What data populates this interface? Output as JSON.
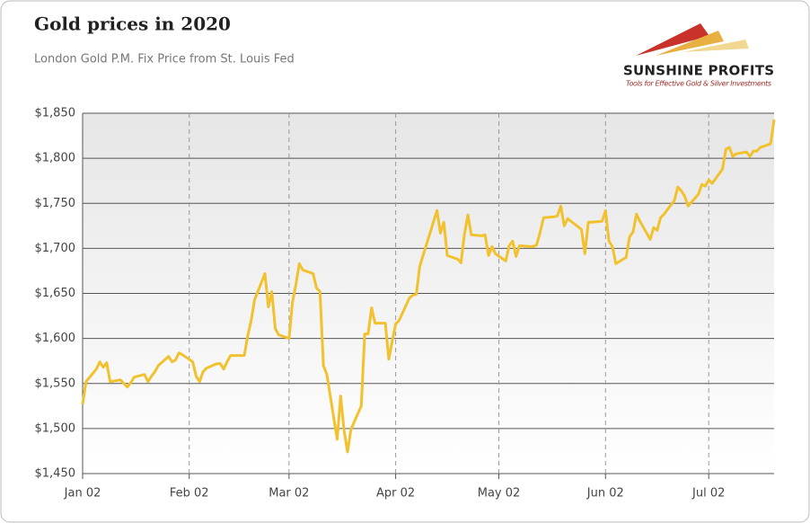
{
  "chart_data": {
    "type": "line",
    "title": "Gold prices in 2020",
    "subtitle": "London Gold P.M. Fix Price from St. Louis Fed",
    "logo": {
      "name": "SUNSHINE PROFITS",
      "tagline": "Tools for Effective Gold & Silver Investments"
    },
    "x": [
      "Jan 02",
      "Jan 03",
      "Jan 06",
      "Jan 07",
      "Jan 08",
      "Jan 09",
      "Jan 10",
      "Jan 13",
      "Jan 14",
      "Jan 15",
      "Jan 16",
      "Jan 17",
      "Jan 20",
      "Jan 21",
      "Jan 22",
      "Jan 23",
      "Jan 24",
      "Jan 27",
      "Jan 28",
      "Jan 29",
      "Jan 30",
      "Jan 31",
      "Feb 03",
      "Feb 04",
      "Feb 05",
      "Feb 06",
      "Feb 07",
      "Feb 10",
      "Feb 11",
      "Feb 12",
      "Feb 13",
      "Feb 14",
      "Feb 17",
      "Feb 18",
      "Feb 19",
      "Feb 20",
      "Feb 21",
      "Feb 24",
      "Feb 25",
      "Feb 26",
      "Feb 27",
      "Feb 28",
      "Mar 02",
      "Mar 03",
      "Mar 04",
      "Mar 05",
      "Mar 06",
      "Mar 09",
      "Mar 10",
      "Mar 11",
      "Mar 12",
      "Mar 13",
      "Mar 16",
      "Mar 17",
      "Mar 18",
      "Mar 19",
      "Mar 20",
      "Mar 23",
      "Mar 24",
      "Mar 25",
      "Mar 26",
      "Mar 27",
      "Mar 30",
      "Mar 31",
      "Apr 01",
      "Apr 02",
      "Apr 03",
      "Apr 06",
      "Apr 07",
      "Apr 08",
      "Apr 09",
      "Apr 14",
      "Apr 15",
      "Apr 16",
      "Apr 17",
      "Apr 20",
      "Apr 21",
      "Apr 22",
      "Apr 23",
      "Apr 24",
      "Apr 27",
      "Apr 28",
      "Apr 29",
      "Apr 30",
      "May 01",
      "May 04",
      "May 05",
      "May 06",
      "May 07",
      "May 08",
      "May 11",
      "May 12",
      "May 13",
      "May 14",
      "May 15",
      "May 18",
      "May 19",
      "May 20",
      "May 21",
      "May 22",
      "May 26",
      "May 27",
      "May 28",
      "May 29",
      "Jun 01",
      "Jun 02",
      "Jun 03",
      "Jun 04",
      "Jun 05",
      "Jun 08",
      "Jun 09",
      "Jun 10",
      "Jun 11",
      "Jun 12",
      "Jun 15",
      "Jun 16",
      "Jun 17",
      "Jun 18",
      "Jun 19",
      "Jun 22",
      "Jun 23",
      "Jun 24",
      "Jun 25",
      "Jun 26",
      "Jun 29",
      "Jun 30",
      "Jul 01",
      "Jul 02",
      "Jul 03",
      "Jul 06",
      "Jul 07",
      "Jul 08",
      "Jul 09",
      "Jul 10",
      "Jul 13",
      "Jul 14",
      "Jul 15",
      "Jul 16",
      "Jul 17",
      "Jul 20",
      "Jul 21"
    ],
    "series": [
      {
        "name": "Gold price",
        "color": "#f2c12e",
        "values": [
          1527,
          1552,
          1566,
          1574,
          1568,
          1573,
          1552,
          1554,
          1550,
          1546,
          1551,
          1557,
          1560,
          1552,
          1558,
          1563,
          1570,
          1580,
          1574,
          1576,
          1584,
          1582,
          1574,
          1558,
          1552,
          1563,
          1567,
          1572,
          1572,
          1566,
          1574,
          1581,
          1581,
          1581,
          1603,
          1620,
          1643,
          1672,
          1635,
          1652,
          1611,
          1604,
          1600,
          1640,
          1660,
          1683,
          1676,
          1672,
          1656,
          1652,
          1570,
          1560,
          1488,
          1536,
          1498,
          1474,
          1499,
          1525,
          1605,
          1605,
          1634,
          1617,
          1617,
          1577,
          1597,
          1616,
          1620,
          1645,
          1648,
          1649,
          1680,
          1742,
          1717,
          1729,
          1692,
          1688,
          1684,
          1716,
          1737,
          1715,
          1714,
          1715,
          1692,
          1702,
          1694,
          1686,
          1703,
          1708,
          1691,
          1703,
          1702,
          1702,
          1704,
          1718,
          1734,
          1735,
          1736,
          1747,
          1725,
          1733,
          1721,
          1694,
          1729,
          1729,
          1730,
          1742,
          1708,
          1702,
          1683,
          1690,
          1713,
          1718,
          1738,
          1730,
          1710,
          1723,
          1720,
          1734,
          1738,
          1753,
          1768,
          1764,
          1758,
          1747,
          1760,
          1771,
          1769,
          1776,
          1772,
          1788,
          1810,
          1812,
          1802,
          1805,
          1807,
          1802,
          1808,
          1808,
          1812,
          1816,
          1843
        ]
      }
    ],
    "xlim": [
      "Jan 02",
      "Jul 21"
    ],
    "xticks": [
      "Jan 02",
      "Feb 02",
      "Mar 02",
      "Apr 02",
      "May 02",
      "Jun 02",
      "Jul 02"
    ],
    "ylim": [
      1450,
      1850
    ],
    "yticks": [
      {
        "value": 1450,
        "label": "$1,450"
      },
      {
        "value": 1500,
        "label": "$1,500"
      },
      {
        "value": 1550,
        "label": "$1,550"
      },
      {
        "value": 1600,
        "label": "$1,600"
      },
      {
        "value": 1650,
        "label": "$1,650"
      },
      {
        "value": 1700,
        "label": "$1,700"
      },
      {
        "value": 1750,
        "label": "$1,750"
      },
      {
        "value": 1800,
        "label": "$1,800"
      },
      {
        "value": 1850,
        "label": "$1,850"
      }
    ],
    "grid": true
  }
}
